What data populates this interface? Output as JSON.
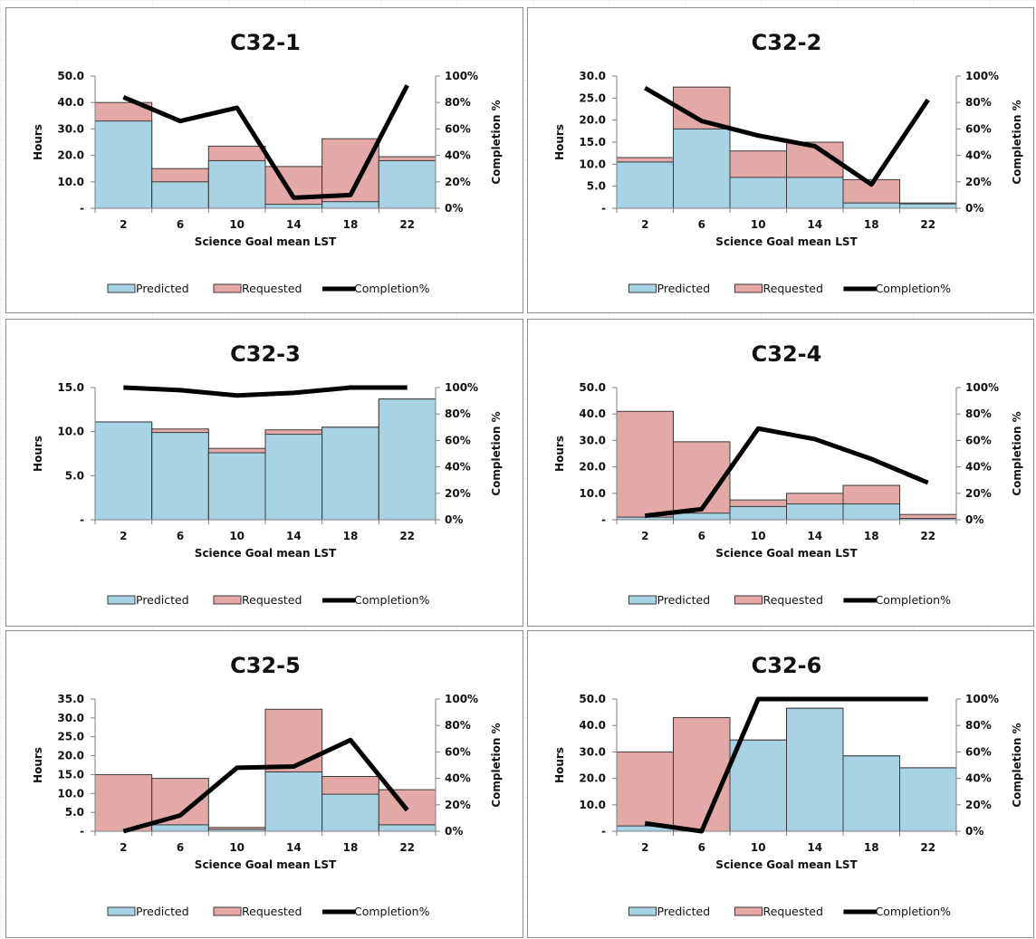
{
  "colors": {
    "predicted_fill": "#a8d3e3",
    "requested_fill": "#e3a9a9",
    "bar_stroke": "#3a3a3a",
    "completion_line": "#000000"
  },
  "chart_data": [
    {
      "type": "bar",
      "title": "C32-1",
      "categories": [
        "2",
        "6",
        "10",
        "14",
        "18",
        "22"
      ],
      "xlabel": "Science Goal mean LST",
      "ylabel": "Hours",
      "y2label": "Completion %",
      "yticks": [
        "-",
        "10.0",
        "20.0",
        "30.0",
        "40.0",
        "50.0"
      ],
      "ylim": [
        0,
        50
      ],
      "y2ticks": [
        "0%",
        "20%",
        "40%",
        "60%",
        "80%",
        "100%"
      ],
      "y2lim": [
        0,
        100
      ],
      "series": [
        {
          "name": "Predicted",
          "values": [
            33.0,
            10.0,
            18.0,
            1.5,
            2.5,
            18.0
          ]
        },
        {
          "name": "Requested",
          "values": [
            40.0,
            15.0,
            23.5,
            15.8,
            26.3,
            19.5
          ]
        },
        {
          "name": "Completion%",
          "values": [
            84,
            66,
            76,
            8,
            10,
            93
          ]
        }
      ],
      "legend": [
        "Predicted",
        "Requested",
        "Completion%"
      ],
      "legend_position": "bottom",
      "grid": false
    },
    {
      "type": "bar",
      "title": "C32-2",
      "categories": [
        "2",
        "6",
        "10",
        "14",
        "18",
        "22"
      ],
      "xlabel": "Science Goal mean LST",
      "ylabel": "Hours",
      "y2label": "Completion %",
      "yticks": [
        "-",
        "5.0",
        "10.0",
        "15.0",
        "20.0",
        "25.0",
        "30.0"
      ],
      "ylim": [
        0,
        30
      ],
      "y2ticks": [
        "0%",
        "20%",
        "40%",
        "60%",
        "80%",
        "100%"
      ],
      "y2lim": [
        0,
        100
      ],
      "series": [
        {
          "name": "Predicted",
          "values": [
            10.5,
            18.0,
            7.0,
            7.0,
            1.2,
            1.0
          ]
        },
        {
          "name": "Requested",
          "values": [
            11.5,
            27.5,
            13.0,
            15.0,
            6.5,
            1.2
          ]
        },
        {
          "name": "Completion%",
          "values": [
            91,
            66,
            55,
            47,
            18,
            82
          ]
        }
      ],
      "legend": [
        "Predicted",
        "Requested",
        "Completion%"
      ],
      "legend_position": "bottom",
      "grid": false
    },
    {
      "type": "bar",
      "title": "C32-3",
      "categories": [
        "2",
        "6",
        "10",
        "14",
        "18",
        "22"
      ],
      "xlabel": "Science Goal mean LST",
      "ylabel": "Hours",
      "y2label": "Completion %",
      "yticks": [
        "-",
        "5.0",
        "10.0",
        "15.0"
      ],
      "ylim": [
        0,
        15
      ],
      "y2ticks": [
        "0%",
        "20%",
        "40%",
        "60%",
        "80%",
        "100%"
      ],
      "y2lim": [
        0,
        100
      ],
      "series": [
        {
          "name": "Predicted",
          "values": [
            11.1,
            9.9,
            7.6,
            9.7,
            10.5,
            13.7
          ]
        },
        {
          "name": "Requested",
          "values": [
            11.1,
            10.3,
            8.1,
            10.2,
            10.5,
            13.7
          ]
        },
        {
          "name": "Completion%",
          "values": [
            100,
            98,
            94,
            96,
            100,
            100
          ]
        }
      ],
      "legend": [
        "Predicted",
        "Requested",
        "Completion%"
      ],
      "legend_position": "bottom",
      "grid": false
    },
    {
      "type": "bar",
      "title": "C32-4",
      "categories": [
        "2",
        "6",
        "10",
        "14",
        "18",
        "22"
      ],
      "xlabel": "Science Goal mean LST",
      "ylabel": "Hours",
      "y2label": "Completion %",
      "yticks": [
        "-",
        "10.0",
        "20.0",
        "30.0",
        "40.0",
        "50.0"
      ],
      "ylim": [
        0,
        50
      ],
      "y2ticks": [
        "0%",
        "20%",
        "40%",
        "60%",
        "80%",
        "100%"
      ],
      "y2lim": [
        0,
        100
      ],
      "series": [
        {
          "name": "Predicted",
          "values": [
            1.0,
            2.5,
            5.0,
            6.0,
            6.0,
            0.5
          ]
        },
        {
          "name": "Requested",
          "values": [
            41.0,
            29.5,
            7.5,
            10.0,
            13.0,
            2.0
          ]
        },
        {
          "name": "Completion%",
          "values": [
            3,
            8,
            69,
            61,
            46,
            28
          ]
        }
      ],
      "legend": [
        "Predicted",
        "Requested",
        "Completion%"
      ],
      "legend_position": "bottom",
      "grid": false
    },
    {
      "type": "bar",
      "title": "C32-5",
      "categories": [
        "2",
        "6",
        "10",
        "14",
        "18",
        "22"
      ],
      "xlabel": "Science Goal mean LST",
      "ylabel": "Hours",
      "y2label": "Completion %",
      "yticks": [
        "-",
        "5.0",
        "10.0",
        "15.0",
        "20.0",
        "25.0",
        "30.0",
        "35.0"
      ],
      "ylim": [
        0,
        35
      ],
      "y2ticks": [
        "0%",
        "20%",
        "40%",
        "60%",
        "80%",
        "100%"
      ],
      "y2lim": [
        0,
        100
      ],
      "series": [
        {
          "name": "Predicted",
          "values": [
            0.0,
            1.7,
            0.5,
            15.7,
            9.8,
            1.7
          ]
        },
        {
          "name": "Requested",
          "values": [
            15.0,
            14.0,
            1.0,
            32.3,
            14.5,
            11.0
          ]
        },
        {
          "name": "Completion%",
          "values": [
            0,
            12,
            48,
            49,
            69,
            16
          ]
        }
      ],
      "legend": [
        "Predicted",
        "Requested",
        "Completion%"
      ],
      "legend_position": "bottom",
      "grid": false
    },
    {
      "type": "bar",
      "title": "C32-6",
      "categories": [
        "2",
        "6",
        "10",
        "14",
        "18",
        "22"
      ],
      "xlabel": "Science Goal mean LST",
      "ylabel": "Hours",
      "y2label": "Completion %",
      "yticks": [
        "-",
        "10.0",
        "20.0",
        "30.0",
        "40.0",
        "50.0"
      ],
      "ylim": [
        0,
        50
      ],
      "y2ticks": [
        "0%",
        "20%",
        "40%",
        "60%",
        "80%",
        "100%"
      ],
      "y2lim": [
        0,
        100
      ],
      "series": [
        {
          "name": "Predicted",
          "values": [
            2.0,
            0.0,
            34.5,
            46.5,
            28.5,
            24.0
          ]
        },
        {
          "name": "Requested",
          "values": [
            30.0,
            43.0,
            34.5,
            46.5,
            28.5,
            24.0
          ]
        },
        {
          "name": "Completion%",
          "values": [
            6,
            0,
            100,
            100,
            100,
            100
          ]
        }
      ],
      "legend": [
        "Predicted",
        "Requested",
        "Completion%"
      ],
      "legend_position": "bottom",
      "grid": false
    }
  ]
}
